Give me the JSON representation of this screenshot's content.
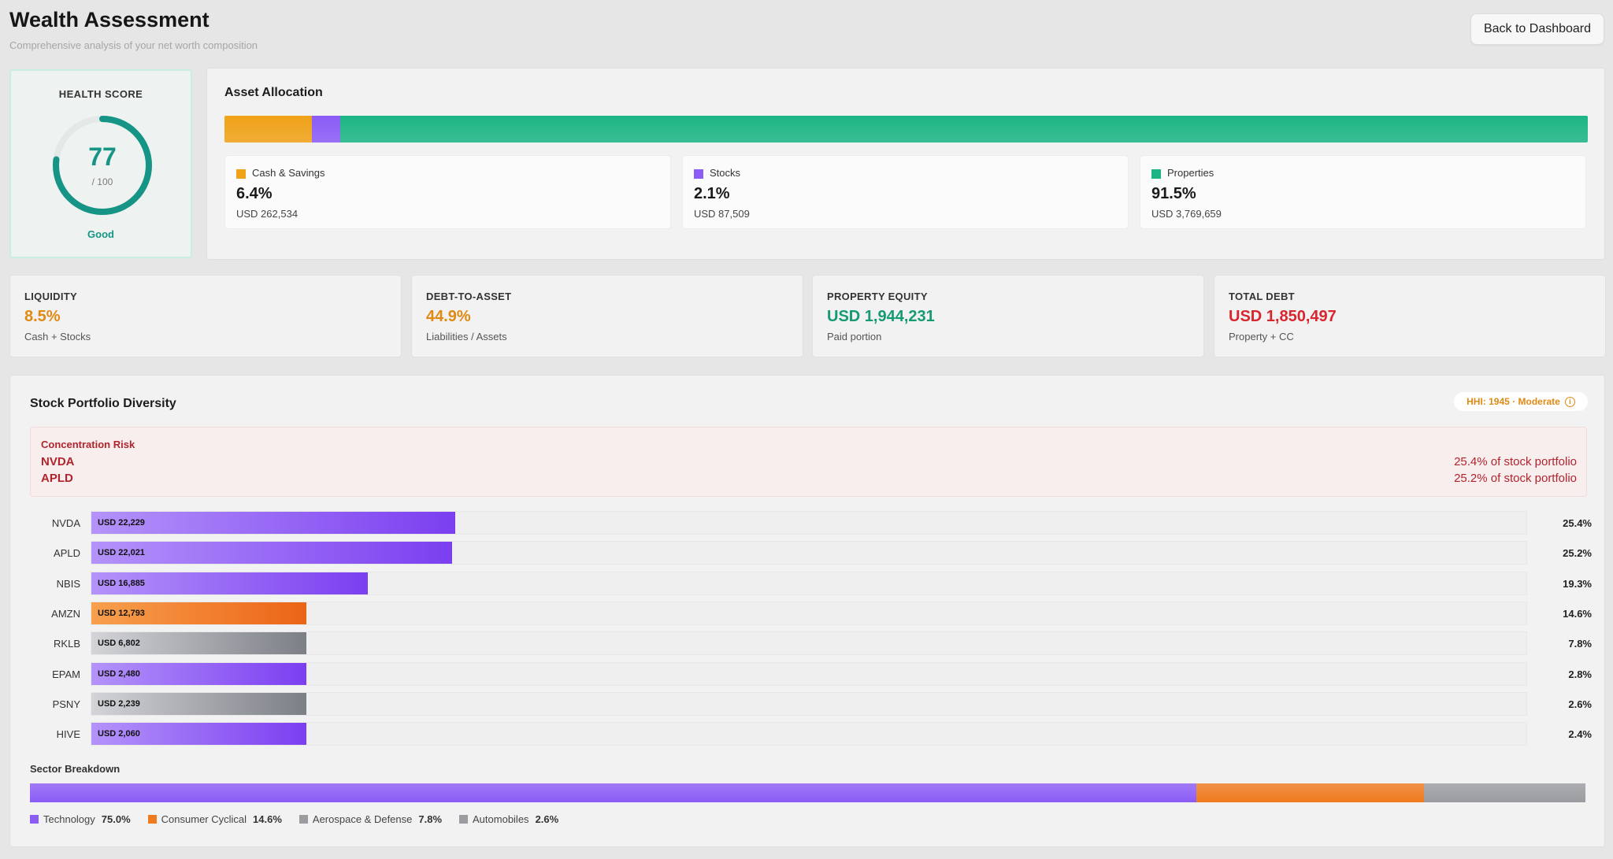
{
  "header": {
    "title": "Wealth Assessment",
    "subtitle": "Comprehensive analysis of your net worth composition",
    "back_label": "Back to Dashboard"
  },
  "health": {
    "label": "HEALTH SCORE",
    "score": "77",
    "max": "/ 100",
    "status": "Good",
    "score_fraction": 0.77,
    "color": "#169485"
  },
  "allocation": {
    "title": "Asset Allocation",
    "items": [
      {
        "name": "Cash & Savings",
        "pct": "6.4%",
        "amount": "USD 262,534",
        "share": 6.4,
        "color": "#f0a218"
      },
      {
        "name": "Stocks",
        "pct": "2.1%",
        "amount": "USD 87,509",
        "share": 2.1,
        "color": "#8b5cf6"
      },
      {
        "name": "Properties",
        "pct": "91.5%",
        "amount": "USD 3,769,659",
        "share": 91.5,
        "color": "#1db585"
      }
    ]
  },
  "metrics": [
    {
      "label": "LIQUIDITY",
      "value": "8.5%",
      "sub": "Cash + Stocks",
      "color": "#e08a14"
    },
    {
      "label": "DEBT-TO-ASSET",
      "value": "44.9%",
      "sub": "Liabilities / Assets",
      "color": "#e08a14"
    },
    {
      "label": "PROPERTY EQUITY",
      "value": "USD 1,944,231",
      "sub": "Paid portion",
      "color": "#159a74"
    },
    {
      "label": "TOTAL DEBT",
      "value": "USD 1,850,497",
      "sub": "Property + CC",
      "color": "#d8262f"
    }
  ],
  "portfolio": {
    "title": "Stock Portfolio Diversity",
    "hhi": "HHI: 1945 · Moderate",
    "risk": {
      "title": "Concentration Risk",
      "items": [
        {
          "ticker": "NVDA",
          "text": "25.4% of stock portfolio"
        },
        {
          "ticker": "APLD",
          "text": "25.2% of stock portfolio"
        }
      ]
    },
    "stocks": [
      {
        "ticker": "NVDA",
        "amount": "USD 22,229",
        "pct": "25.4%",
        "share": 25.4,
        "sector": "tech"
      },
      {
        "ticker": "APLD",
        "amount": "USD 22,021",
        "pct": "25.2%",
        "share": 25.2,
        "sector": "tech"
      },
      {
        "ticker": "NBIS",
        "amount": "USD 16,885",
        "pct": "19.3%",
        "share": 19.3,
        "sector": "tech"
      },
      {
        "ticker": "AMZN",
        "amount": "USD 12,793",
        "pct": "14.6%",
        "share": 14.6,
        "sector": "consumer"
      },
      {
        "ticker": "RKLB",
        "amount": "USD 6,802",
        "pct": "7.8%",
        "share": 7.8,
        "sector": "gray"
      },
      {
        "ticker": "EPAM",
        "amount": "USD 2,480",
        "pct": "2.8%",
        "share": 2.8,
        "sector": "tech"
      },
      {
        "ticker": "PSNY",
        "amount": "USD 2,239",
        "pct": "2.6%",
        "share": 2.6,
        "sector": "gray"
      },
      {
        "ticker": "HIVE",
        "amount": "USD 2,060",
        "pct": "2.4%",
        "share": 2.4,
        "sector": "tech"
      }
    ],
    "sector_title": "Sector Breakdown",
    "sectors": [
      {
        "name": "Technology",
        "pct": "75.0%",
        "share": 75.0,
        "color": "#8b5cf6"
      },
      {
        "name": "Consumer Cyclical",
        "pct": "14.6%",
        "share": 14.6,
        "color": "#f07a1e"
      },
      {
        "name": "Aerospace & Defense",
        "pct": "7.8%",
        "share": 7.8,
        "color": "#9a9ca0"
      },
      {
        "name": "Automobiles",
        "pct": "2.6%",
        "share": 2.6,
        "color": "#9a9ca0"
      }
    ]
  }
}
